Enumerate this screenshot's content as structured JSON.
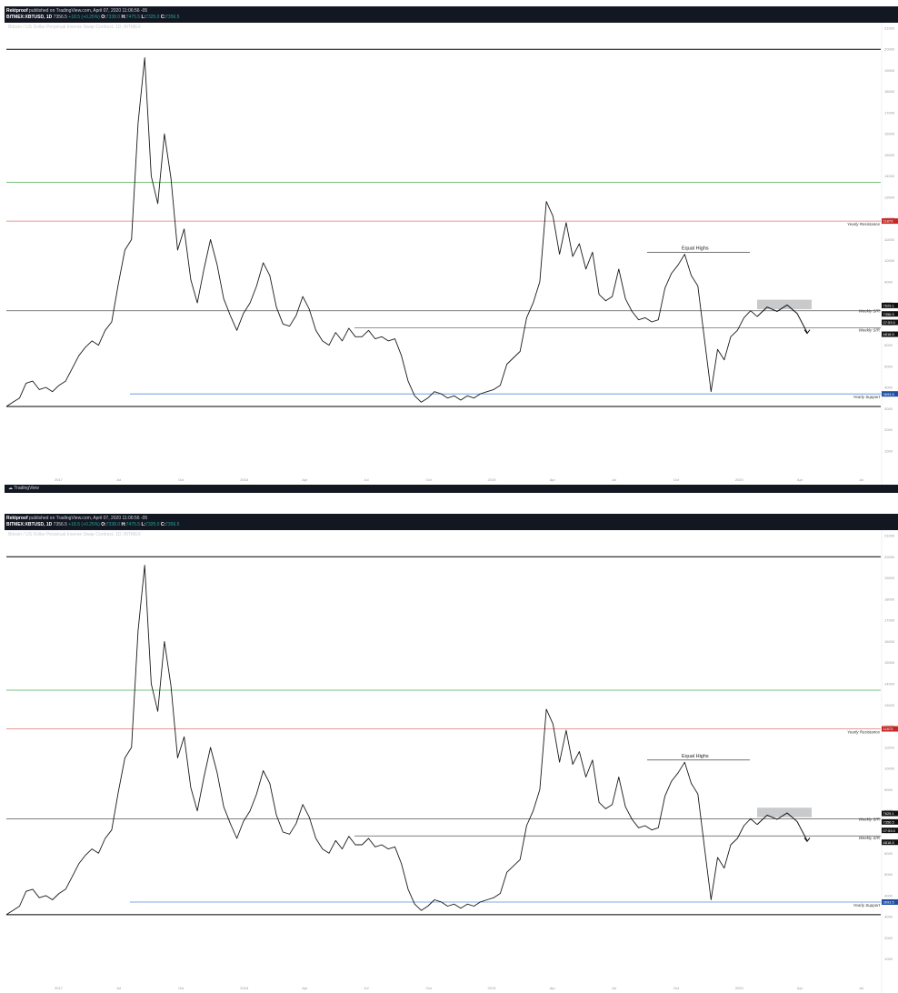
{
  "header": {
    "author": "Rektproof",
    "published": "published on TradingView.com, April 07, 2020 11:06:56 -05",
    "ticker": "BITMEX:XBTUSD, 1D",
    "price": "7356.5",
    "change": "+18.5 (+0.25%)",
    "open": "7338.0",
    "high": "7475.5",
    "low": "7325.0",
    "close": "7356.5"
  },
  "symbol_desc": "Bitcoin / US Dollar Perpetual Inverse Swap Contract, 1D, BITMEX",
  "footer_brand": "TradingView",
  "annotations": {
    "equal_highs": "Equal Highs",
    "yearly_resistance": "Yearly Resistance",
    "weekly_sr_1": "Weekly S/R",
    "weekly_sr_2": "Weekly S/R",
    "yearly_support": "Yearly Support"
  },
  "price_tags": {
    "resistance": "11873",
    "p1": "7629.1",
    "p2": "7356.5",
    "p3": "07:53:0",
    "p4": "6818.5",
    "support": "3693.5"
  },
  "colors": {
    "resistance_line": "#e57373",
    "green_line": "#4caf50",
    "support_line": "#5b8fd1",
    "resistance_tag": "#c62828",
    "support_tag": "#1e4fa3",
    "black_line": "#000000",
    "zone": "#c9cacc"
  },
  "chart_data": {
    "type": "line",
    "title": "",
    "xlabel": "",
    "ylabel": "",
    "ylim": [
      0,
      21000
    ],
    "x_ticks": [
      "2017",
      "Jul",
      "Oct",
      "2018",
      "Apr",
      "Jul",
      "Oct",
      "2019",
      "Apr",
      "Jul",
      "Oct",
      "2020",
      "Apr",
      "Jul"
    ],
    "x_ticks_note": "tick labels approximated",
    "levels": {
      "top": 20000,
      "resistance": 11873,
      "green": 13700,
      "weekly_sr_upper": 7629,
      "weekly_sr_lower": 6818,
      "support": 3693,
      "bottom": 3100
    },
    "series": [
      {
        "values": [
          3100,
          3300,
          3500,
          4200,
          4300,
          3900,
          4000,
          3800,
          4100,
          4300,
          4900,
          5500,
          5900,
          6200,
          6000,
          6700,
          7100,
          8900,
          10500,
          11000,
          16500,
          19600,
          14000,
          12700,
          16000,
          13900,
          10500,
          11500,
          9100,
          8000,
          9600,
          11000,
          9800,
          8200,
          7400,
          6700,
          7500,
          8000,
          8800,
          9900,
          9300,
          7800,
          7000,
          6900,
          7400,
          8300,
          7700,
          6700,
          6200,
          6000,
          6600,
          6200,
          6800,
          6400,
          6400,
          6700,
          6300,
          6400,
          6200,
          6300,
          5500,
          4300,
          3600,
          3300,
          3500,
          3800,
          3700,
          3500,
          3600,
          3400,
          3600,
          3500,
          3700,
          3800,
          3900,
          4100,
          5100,
          5400,
          5700,
          7300,
          8000,
          9000,
          12800,
          12100,
          10300,
          11800,
          10200,
          10800,
          9600,
          10400,
          8400,
          8100,
          8300,
          9600,
          8200,
          7600,
          7200,
          7300,
          7100,
          7200,
          8700,
          9400,
          9800,
          10300,
          9300,
          8800,
          6300,
          3800,
          5800,
          5300,
          6400,
          6700,
          7300,
          7629,
          7356
        ]
      }
    ],
    "projection": [
      7356,
      7800,
      7600,
      7900,
      7500,
      6600
    ]
  }
}
